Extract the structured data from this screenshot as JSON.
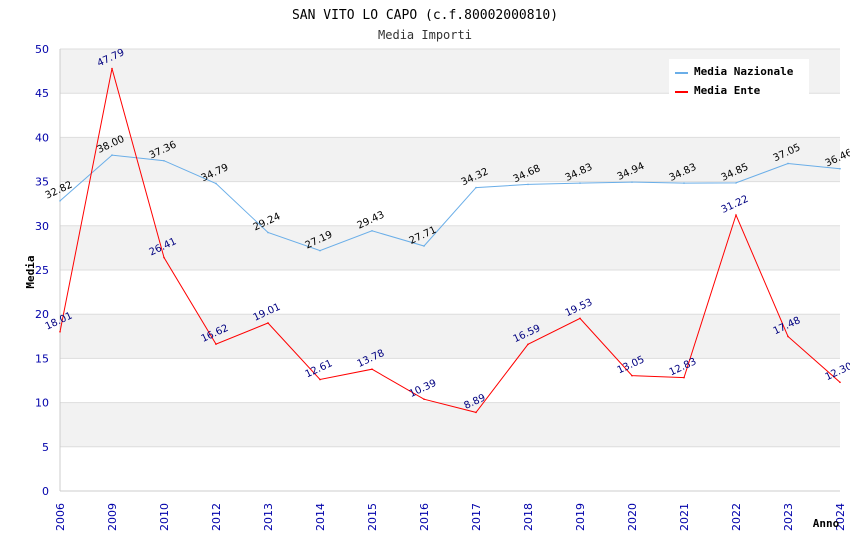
{
  "chart_data": {
    "type": "line",
    "title": "SAN VITO LO CAPO (c.f.80002000810)",
    "subtitle": "Media Importi",
    "xlabel": "Anno",
    "ylabel": "Media",
    "ylim": [
      0,
      50
    ],
    "yticks": [
      "0",
      "5",
      "10",
      "15",
      "20",
      "25",
      "30",
      "35",
      "40",
      "45",
      "50"
    ],
    "categories": [
      "2006",
      "2009",
      "2010",
      "2012",
      "2013",
      "2014",
      "2015",
      "2016",
      "2017",
      "2018",
      "2019",
      "2020",
      "2021",
      "2022",
      "2023",
      "2024"
    ],
    "series": [
      {
        "name": "Media Nazionale",
        "color": "#6aaee8",
        "values": [
          32.82,
          38.0,
          37.36,
          34.79,
          29.24,
          27.19,
          29.43,
          27.71,
          34.32,
          34.68,
          34.83,
          34.94,
          34.83,
          34.85,
          37.05,
          36.46
        ],
        "labels": [
          "32.82",
          "38.00",
          "37.36",
          "34.79",
          "29.24",
          "27.19",
          "29.43",
          "27.71",
          "34.32",
          "34.68",
          "34.83",
          "34.94",
          "34.83",
          "34.85",
          "37.05",
          "36.46"
        ]
      },
      {
        "name": "Media Ente",
        "color": "#ff0000",
        "values": [
          18.01,
          47.79,
          26.41,
          16.62,
          19.01,
          12.61,
          13.78,
          10.39,
          8.89,
          16.59,
          19.53,
          13.05,
          12.83,
          31.22,
          17.48,
          12.3
        ],
        "labels": [
          "18.01",
          "47.79",
          "26.41",
          "16.62",
          "19.01",
          "12.61",
          "13.78",
          "10.39",
          "8.89",
          "16.59",
          "19.53",
          "13.05",
          "12.83",
          "31.22",
          "17.48",
          "12.30"
        ]
      }
    ],
    "legend": "top-right",
    "grid": true
  }
}
